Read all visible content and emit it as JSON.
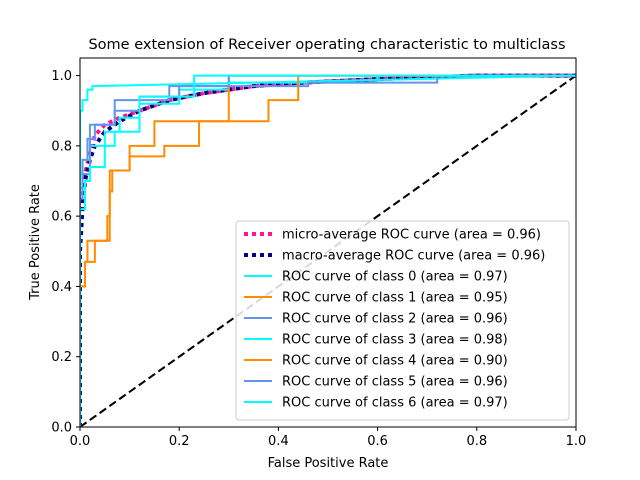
{
  "chart_data": {
    "type": "line",
    "title": "Some extension of Receiver operating characteristic to multiclass",
    "xlabel": "False Positive Rate",
    "ylabel": "True Positive Rate",
    "xlim": [
      0.0,
      1.0
    ],
    "ylim": [
      0.0,
      1.05
    ],
    "xticks": [
      "0.0",
      "0.2",
      "0.4",
      "0.6",
      "0.8",
      "1.0"
    ],
    "yticks": [
      "0.0",
      "0.2",
      "0.4",
      "0.6",
      "0.8",
      "1.0"
    ],
    "grid": false,
    "legend_position": "lower-right",
    "series": [
      {
        "name": "micro-average ROC curve (area = 0.96)",
        "color": "#ff1493",
        "style": "dotted",
        "x": [
          0.0,
          0.0,
          0.005,
          0.01,
          0.02,
          0.03,
          0.05,
          0.08,
          0.12,
          0.18,
          0.25,
          0.35,
          0.45,
          0.6,
          0.8,
          1.0
        ],
        "y": [
          0.0,
          0.55,
          0.65,
          0.72,
          0.78,
          0.83,
          0.86,
          0.88,
          0.9,
          0.93,
          0.95,
          0.97,
          0.98,
          0.99,
          1.0,
          1.0
        ]
      },
      {
        "name": "macro-average ROC curve (area = 0.96)",
        "color": "#000080",
        "style": "dotted",
        "x": [
          0.0,
          0.0,
          0.005,
          0.01,
          0.02,
          0.03,
          0.05,
          0.08,
          0.12,
          0.18,
          0.25,
          0.35,
          0.45,
          0.6,
          0.8,
          1.0
        ],
        "y": [
          0.0,
          0.5,
          0.62,
          0.7,
          0.76,
          0.8,
          0.84,
          0.87,
          0.9,
          0.93,
          0.95,
          0.97,
          0.98,
          0.99,
          1.0,
          1.0
        ]
      },
      {
        "name": "ROC curve of class 0 (area = 0.97)",
        "color": "#00ffff",
        "style": "solid",
        "x": [
          0.0,
          0.0,
          0.005,
          0.005,
          0.02,
          0.02,
          0.05,
          0.05,
          0.08,
          0.08,
          0.12,
          0.12,
          0.2,
          0.2,
          0.3,
          0.3,
          0.6,
          0.6,
          1.0
        ],
        "y": [
          0.0,
          0.72,
          0.72,
          0.76,
          0.76,
          0.8,
          0.8,
          0.84,
          0.84,
          0.88,
          0.88,
          0.92,
          0.92,
          0.96,
          0.96,
          0.98,
          0.98,
          1.0,
          1.0
        ]
      },
      {
        "name": "ROC curve of class 1 (area = 0.95)",
        "color": "#ff8c00",
        "style": "solid",
        "x": [
          0.0,
          0.0,
          0.01,
          0.01,
          0.015,
          0.015,
          0.025,
          0.025,
          0.055,
          0.055,
          0.06,
          0.06,
          0.065,
          0.065,
          0.1,
          0.1,
          0.15,
          0.15,
          0.3,
          0.3,
          1.0
        ],
        "y": [
          0.0,
          0.4,
          0.4,
          0.47,
          0.47,
          0.53,
          0.53,
          0.53,
          0.53,
          0.6,
          0.6,
          0.67,
          0.67,
          0.73,
          0.73,
          0.8,
          0.8,
          0.87,
          0.87,
          1.0,
          1.0
        ]
      },
      {
        "name": "ROC curve of class 2 (area = 0.96)",
        "color": "#6495ed",
        "style": "solid",
        "x": [
          0.0,
          0.0,
          0.005,
          0.005,
          0.015,
          0.015,
          0.03,
          0.03,
          0.07,
          0.07,
          0.12,
          0.12,
          0.2,
          0.2,
          0.3,
          0.3,
          1.0
        ],
        "y": [
          0.0,
          0.68,
          0.68,
          0.76,
          0.76,
          0.82,
          0.82,
          0.86,
          0.86,
          0.9,
          0.9,
          0.94,
          0.94,
          0.97,
          0.97,
          1.0,
          1.0
        ]
      },
      {
        "name": "ROC curve of class 3 (area = 0.98)",
        "color": "#00ffff",
        "style": "solid",
        "x": [
          0.0,
          0.0,
          0.005,
          0.005,
          0.015,
          0.015,
          0.025,
          0.025,
          1.0
        ],
        "y": [
          0.0,
          0.9,
          0.9,
          0.93,
          0.93,
          0.96,
          0.96,
          0.97,
          1.0
        ]
      },
      {
        "name": "ROC curve of class 4 (area = 0.90)",
        "color": "#ff8c00",
        "style": "solid",
        "x": [
          0.0,
          0.0,
          0.01,
          0.01,
          0.03,
          0.03,
          0.06,
          0.06,
          0.1,
          0.1,
          0.17,
          0.17,
          0.24,
          0.24,
          0.38,
          0.38,
          0.44,
          0.44,
          1.0
        ],
        "y": [
          0.0,
          0.4,
          0.4,
          0.47,
          0.47,
          0.53,
          0.53,
          0.73,
          0.73,
          0.77,
          0.77,
          0.8,
          0.8,
          0.87,
          0.87,
          0.93,
          0.93,
          1.0,
          1.0
        ]
      },
      {
        "name": "ROC curve of class 5 (area = 0.96)",
        "color": "#6495ed",
        "style": "solid",
        "x": [
          0.0,
          0.0,
          0.005,
          0.005,
          0.02,
          0.02,
          0.07,
          0.07,
          0.18,
          0.18,
          0.46,
          0.46,
          0.72,
          0.72,
          1.0
        ],
        "y": [
          0.0,
          0.65,
          0.65,
          0.72,
          0.72,
          0.86,
          0.86,
          0.93,
          0.93,
          0.97,
          0.97,
          0.98,
          0.98,
          1.0,
          1.0
        ]
      },
      {
        "name": "ROC curve of class 6 (area = 0.97)",
        "color": "#00ffff",
        "style": "solid",
        "x": [
          0.0,
          0.0,
          0.01,
          0.01,
          0.02,
          0.02,
          0.05,
          0.05,
          0.07,
          0.07,
          0.12,
          0.12,
          0.23,
          0.23,
          0.62,
          0.62,
          1.0
        ],
        "y": [
          0.0,
          0.62,
          0.62,
          0.7,
          0.7,
          0.74,
          0.74,
          0.8,
          0.8,
          0.84,
          0.84,
          0.94,
          0.94,
          1.0,
          1.0,
          1.0,
          1.0
        ]
      }
    ],
    "reference_line": {
      "color": "#000000",
      "style": "dashed",
      "x": [
        0.0,
        1.0
      ],
      "y": [
        0.0,
        1.0
      ]
    }
  }
}
